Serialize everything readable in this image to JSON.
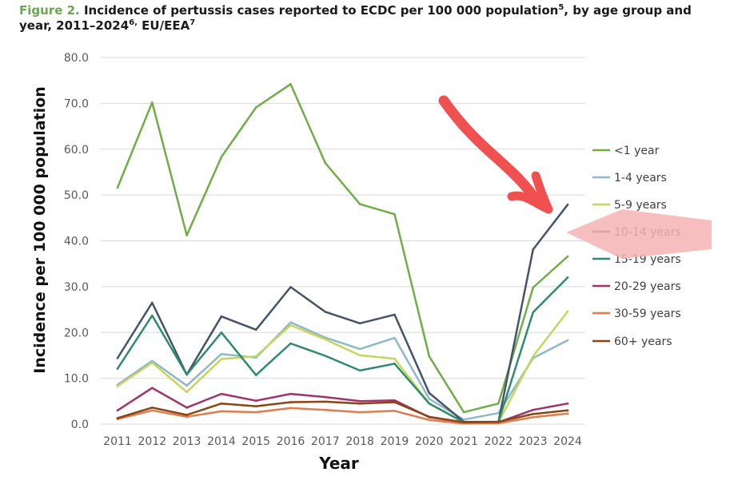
{
  "caption": {
    "figure_label": "Figure 2.",
    "text_part1": "Incidence of pertussis cases reported to ECDC per 100 000 population",
    "sup1": "5",
    "text_part2": ", by age group and year, 2011–2024",
    "sup2": "6,",
    "text_part3": " EU/EEA",
    "sup3": "7"
  },
  "chart_data": {
    "type": "line",
    "title": "Incidence of pertussis cases reported to ECDC per 100 000 population, by age group and year, 2011–2024, EU/EEA",
    "xlabel": "Year",
    "ylabel": "Incidence per 100 000 population",
    "x": [
      "2011",
      "2012",
      "2013",
      "2014",
      "2015",
      "2016",
      "2017",
      "2018",
      "2019",
      "2020",
      "2021",
      "2022",
      "2023",
      "2024"
    ],
    "ylim": [
      0,
      80
    ],
    "yticks": [
      "0.0",
      "10.0",
      "20.0",
      "30.0",
      "40.0",
      "50.0",
      "60.0",
      "70.0",
      "80.0"
    ],
    "grid": true,
    "legend_position": "right",
    "series": [
      {
        "name": "<1 year",
        "color": "#70ad47",
        "values": [
          51.6,
          70.2,
          41.2,
          58.3,
          69.1,
          74.2,
          57.0,
          48.0,
          45.8,
          14.8,
          2.6,
          4.5,
          29.8,
          36.6
        ]
      },
      {
        "name": "1-4 years",
        "color": "#8fb8c8",
        "values": [
          8.6,
          13.8,
          8.4,
          15.3,
          14.5,
          22.2,
          18.9,
          16.4,
          18.8,
          5.5,
          1.0,
          2.4,
          14.4,
          18.3
        ]
      },
      {
        "name": "5-9 years",
        "color": "#c5d65a",
        "values": [
          8.3,
          13.4,
          7.0,
          14.2,
          14.8,
          21.6,
          18.5,
          15.0,
          14.3,
          4.5,
          0.4,
          0.4,
          14.8,
          24.6
        ]
      },
      {
        "name": "10-14 years",
        "color": "#44546a",
        "values": [
          14.4,
          26.5,
          10.8,
          23.5,
          20.6,
          29.9,
          24.5,
          22.0,
          23.9,
          6.8,
          0.5,
          0.5,
          38.1,
          47.9
        ]
      },
      {
        "name": "15-19 years",
        "color": "#2e8b6e",
        "values": [
          12.1,
          23.7,
          10.8,
          20.0,
          10.7,
          17.6,
          14.9,
          11.7,
          13.2,
          4.5,
          0.4,
          0.5,
          24.4,
          32.0
        ]
      },
      {
        "name": "20-29 years",
        "color": "#a0336b",
        "values": [
          3.0,
          7.9,
          3.6,
          6.6,
          5.1,
          6.6,
          5.9,
          5.0,
          5.2,
          1.5,
          0.4,
          0.4,
          3.1,
          4.5
        ]
      },
      {
        "name": "30-59 years",
        "color": "#e07b4f",
        "values": [
          1.1,
          3.0,
          1.6,
          2.8,
          2.6,
          3.5,
          3.1,
          2.6,
          2.9,
          0.9,
          0.1,
          0.2,
          1.5,
          2.3
        ]
      },
      {
        "name": "60+ years",
        "color": "#8b4513",
        "values": [
          1.3,
          3.6,
          2.0,
          4.5,
          3.9,
          4.8,
          4.9,
          4.5,
          4.8,
          1.6,
          0.4,
          0.5,
          2.2,
          3.0
        ]
      }
    ]
  },
  "annotations": {
    "arrow_color": "#f05050",
    "highlight_color": "#f4b3b3"
  }
}
